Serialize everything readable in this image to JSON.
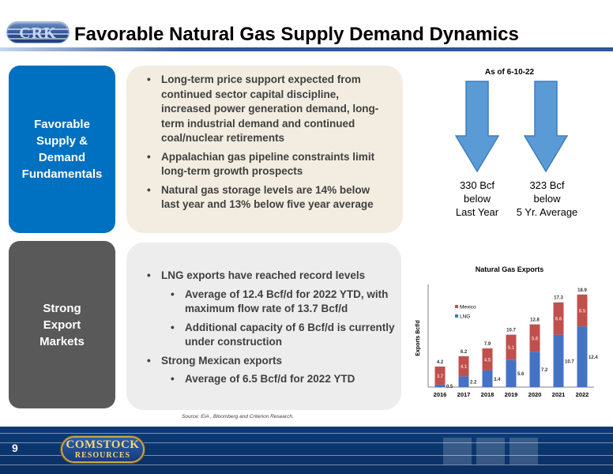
{
  "header": {
    "title": "Favorable Natural Gas Supply Demand Dynamics",
    "logo_text": "CRK"
  },
  "panels": {
    "supply": {
      "label": "Favorable\nSupply &\nDemand\nFundamentals",
      "bullets": [
        "Long-term price support expected from continued sector capital discipline, increased power generation demand, long-term industrial demand and continued coal/nuclear retirements",
        "Appalachian gas pipeline constraints limit long-term growth prospects",
        "Natural gas storage levels are 14% below last year and 13% below five year average"
      ]
    },
    "export": {
      "label": "Strong\nExport\nMarkets",
      "bullets": [
        "LNG exports have reached record levels",
        "Average of 12.4 Bcf/d for 2022 YTD, with maximum flow rate of 13.7 Bcf/d",
        "Additional capacity of 6 Bcf/d is currently under construction",
        "Strong Mexican exports",
        "Average of 6.5 Bcf/d for 2022 YTD"
      ]
    }
  },
  "storage": {
    "as_of": "As of 6-10-22",
    "last_year": "330 Bcf\nbelow\nLast Year",
    "five_year": "323 Bcf\nbelow\n5 Yr. Average",
    "arrow_color": "#5b9bd5"
  },
  "chart_data": {
    "type": "bar",
    "stacked": true,
    "title": "Natural Gas Exports",
    "ylabel": "Exports Bcf/d",
    "xlabel": "",
    "categories": [
      "2016",
      "2017",
      "2018",
      "2019",
      "2020",
      "2021",
      "2022"
    ],
    "series": [
      {
        "name": "LNG",
        "color": "#4472c4",
        "values": [
          0.5,
          2.2,
          3.4,
          5.6,
          7.2,
          10.7,
          12.4
        ]
      },
      {
        "name": "Mexico",
        "color": "#c0504d",
        "values": [
          3.7,
          4.1,
          4.5,
          5.1,
          5.6,
          6.6,
          6.5
        ]
      }
    ],
    "totals": [
      4.2,
      6.2,
      7.9,
      10.7,
      12.8,
      17.3,
      18.9
    ],
    "ylim": [
      0,
      20
    ],
    "grid": false,
    "legend": "top-left"
  },
  "source": "Source: EIA , Bloomberg and Criterion Research.",
  "footer": {
    "page_number": "9",
    "logo_line1": "COMSTOCK",
    "logo_line2": "RESOURCES"
  }
}
